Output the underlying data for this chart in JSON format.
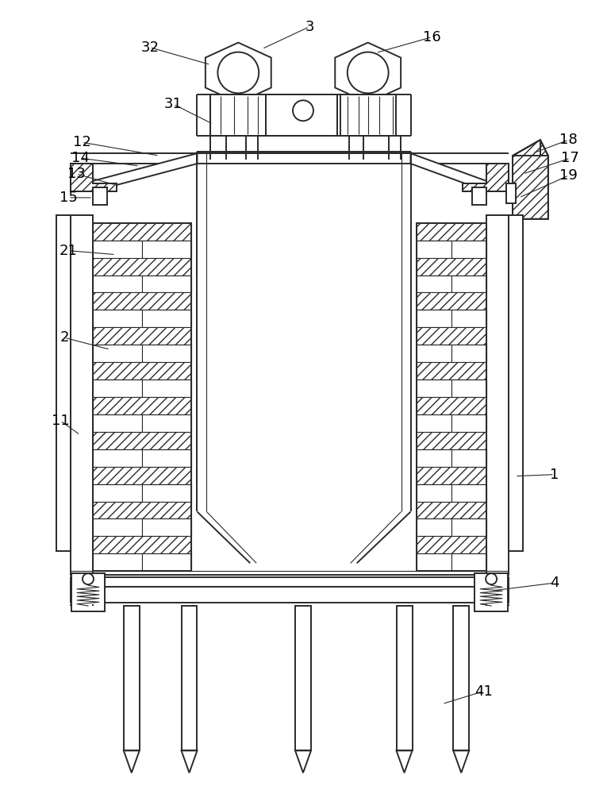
{
  "bg_color": "#ffffff",
  "line_color": "#2a2a2a",
  "lw": 1.4,
  "lw_thin": 0.8,
  "lw_thick": 2.0
}
